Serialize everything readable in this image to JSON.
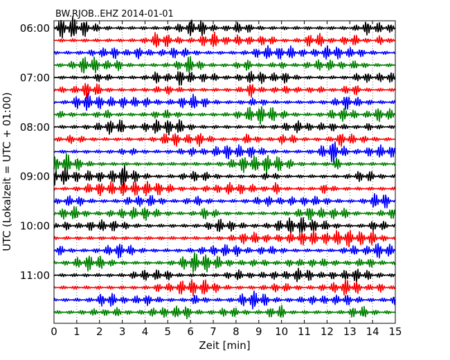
{
  "chart_data": {
    "type": "line",
    "title": "BW.RJOB..EHZ 2014-01-01",
    "xlabel": "Zeit  [min]",
    "ylabel": "UTC (Lokalzeit = UTC + 01:00)",
    "xlim": [
      0,
      15
    ],
    "x_ticks": [
      "0",
      "1",
      "2",
      "3",
      "4",
      "5",
      "6",
      "7",
      "8",
      "9",
      "10",
      "11",
      "12",
      "13",
      "14",
      "15"
    ],
    "y_ticks": [
      "06:00",
      "07:00",
      "08:00",
      "09:00",
      "10:00",
      "11:00"
    ],
    "grid": "dotted vertical",
    "trace_interval_min": 15,
    "trace_start": "06:00",
    "trace_count": 24,
    "trace_colors": [
      "#000000",
      "#ff0000",
      "#0000ff",
      "#008000"
    ],
    "series": [
      {
        "start": "06:00"
      },
      {
        "start": "06:15"
      },
      {
        "start": "06:30"
      },
      {
        "start": "06:45"
      },
      {
        "start": "07:00"
      },
      {
        "start": "07:15"
      },
      {
        "start": "07:30"
      },
      {
        "start": "07:45"
      },
      {
        "start": "08:00"
      },
      {
        "start": "08:15"
      },
      {
        "start": "08:30"
      },
      {
        "start": "08:45"
      },
      {
        "start": "09:00"
      },
      {
        "start": "09:15"
      },
      {
        "start": "09:30"
      },
      {
        "start": "09:45"
      },
      {
        "start": "10:00"
      },
      {
        "start": "10:15"
      },
      {
        "start": "10:30"
      },
      {
        "start": "10:45"
      },
      {
        "start": "11:00"
      },
      {
        "start": "11:15"
      },
      {
        "start": "11:30"
      },
      {
        "start": "11:45"
      }
    ]
  }
}
